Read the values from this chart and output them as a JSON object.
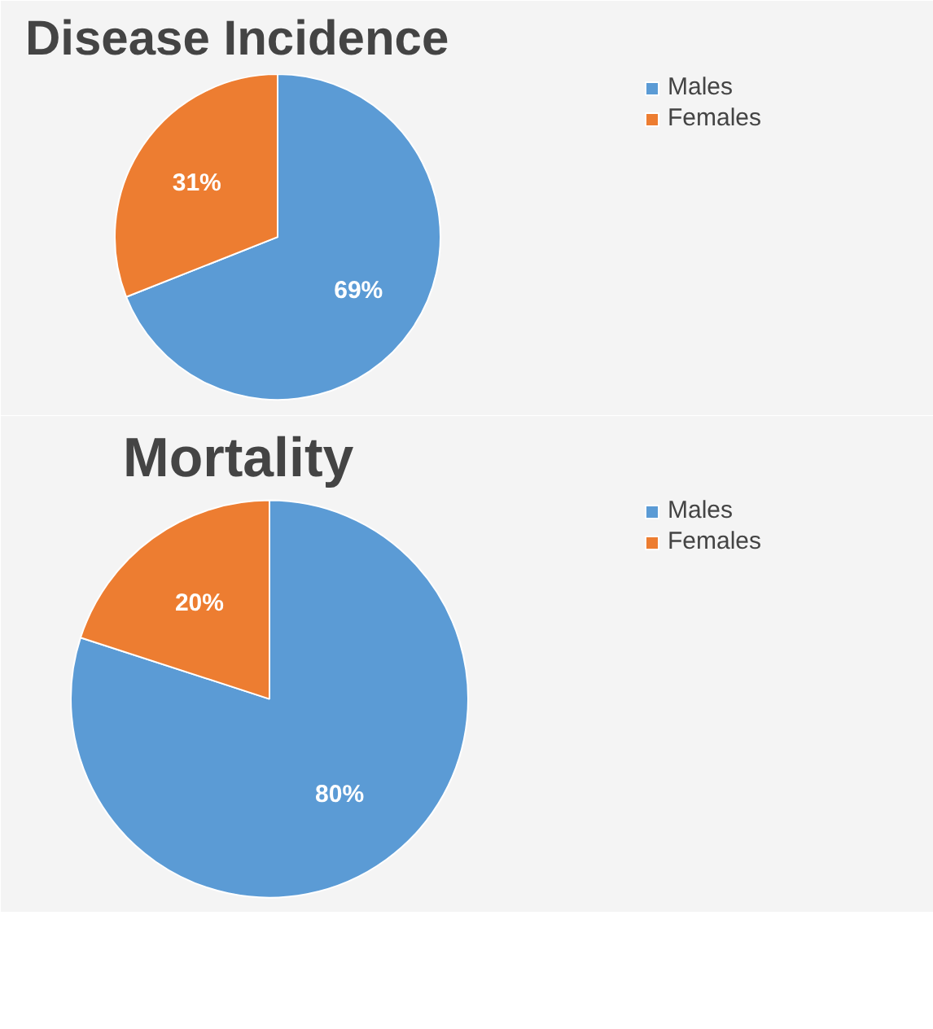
{
  "chart_data": [
    {
      "type": "pie",
      "title": "Disease Incidence",
      "categories": [
        "Males",
        "Females"
      ],
      "values": [
        69,
        31
      ],
      "colors": [
        "#5b9bd5",
        "#ed7d31"
      ],
      "value_labels": [
        "69%",
        "31%"
      ],
      "legend": "right"
    },
    {
      "type": "pie",
      "title": "Mortality",
      "categories": [
        "Males",
        "Females"
      ],
      "values": [
        80,
        20
      ],
      "colors": [
        "#5b9bd5",
        "#ed7d31"
      ],
      "value_labels": [
        "80%",
        "20%"
      ],
      "legend": "right"
    }
  ]
}
